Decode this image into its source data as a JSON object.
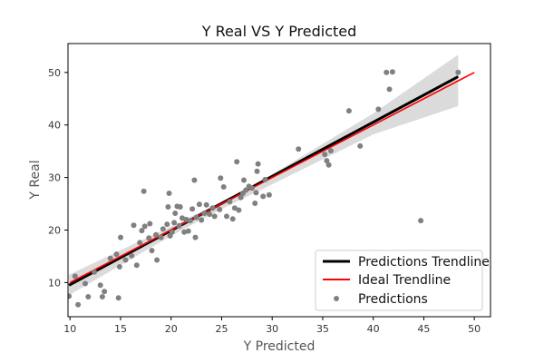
{
  "chart_data": {
    "type": "scatter",
    "title": "Y Real VS Y Predicted",
    "xlabel": "Y Predicted",
    "ylabel": "Y Real",
    "xlim": [
      9.8,
      51.6
    ],
    "ylim": [
      3.5,
      55.5
    ],
    "xticks": [
      10,
      15,
      20,
      25,
      30,
      35,
      40,
      45,
      50
    ],
    "yticks": [
      10,
      20,
      30,
      40,
      50
    ],
    "legend_position": "lower-right",
    "colors": {
      "points": "#808080",
      "trendline": "#000000",
      "ideal": "#ff0000",
      "confidence_band": "#d9d9d9"
    },
    "series": [
      {
        "name": "Predictions",
        "kind": "points",
        "points": [
          [
            9.9,
            7.4
          ],
          [
            10.5,
            11.2
          ],
          [
            10.8,
            5.8
          ],
          [
            11.5,
            9.8
          ],
          [
            11.8,
            7.3
          ],
          [
            12.4,
            12.0
          ],
          [
            13.0,
            9.5
          ],
          [
            13.2,
            7.3
          ],
          [
            13.4,
            8.3
          ],
          [
            14.0,
            14.6
          ],
          [
            14.6,
            15.4
          ],
          [
            14.8,
            7.1
          ],
          [
            14.9,
            13.0
          ],
          [
            15.0,
            18.6
          ],
          [
            15.5,
            14.3
          ],
          [
            16.1,
            15.1
          ],
          [
            16.3,
            20.9
          ],
          [
            16.6,
            13.3
          ],
          [
            16.9,
            17.6
          ],
          [
            17.1,
            19.9
          ],
          [
            17.3,
            27.4
          ],
          [
            17.4,
            20.7
          ],
          [
            17.8,
            18.5
          ],
          [
            17.9,
            21.2
          ],
          [
            18.1,
            16.1
          ],
          [
            18.5,
            19.1
          ],
          [
            18.6,
            14.3
          ],
          [
            19.0,
            18.6
          ],
          [
            19.2,
            20.2
          ],
          [
            19.6,
            21.1
          ],
          [
            19.7,
            24.4
          ],
          [
            19.8,
            27.0
          ],
          [
            19.9,
            18.9
          ],
          [
            20.1,
            19.6
          ],
          [
            20.3,
            21.4
          ],
          [
            20.4,
            23.2
          ],
          [
            20.6,
            24.5
          ],
          [
            20.8,
            20.8
          ],
          [
            20.9,
            24.4
          ],
          [
            21.1,
            22.3
          ],
          [
            21.3,
            19.6
          ],
          [
            21.5,
            22.0
          ],
          [
            21.7,
            19.8
          ],
          [
            21.9,
            21.8
          ],
          [
            22.1,
            24.0
          ],
          [
            22.3,
            29.5
          ],
          [
            22.4,
            18.6
          ],
          [
            22.5,
            22.4
          ],
          [
            22.8,
            24.9
          ],
          [
            23.0,
            21.9
          ],
          [
            23.3,
            23.2
          ],
          [
            23.5,
            24.8
          ],
          [
            23.8,
            23.0
          ],
          [
            24.1,
            24.2
          ],
          [
            24.3,
            22.6
          ],
          [
            24.8,
            23.9
          ],
          [
            24.9,
            29.9
          ],
          [
            25.2,
            28.2
          ],
          [
            25.5,
            22.6
          ],
          [
            25.8,
            25.4
          ],
          [
            26.1,
            22.1
          ],
          [
            26.3,
            24.2
          ],
          [
            26.5,
            33.0
          ],
          [
            26.7,
            23.8
          ],
          [
            26.9,
            26.2
          ],
          [
            27.1,
            27.0
          ],
          [
            27.2,
            29.5
          ],
          [
            27.4,
            27.6
          ],
          [
            27.7,
            28.3
          ],
          [
            28.0,
            28.0
          ],
          [
            28.3,
            25.1
          ],
          [
            28.4,
            27.1
          ],
          [
            28.5,
            31.2
          ],
          [
            28.6,
            32.6
          ],
          [
            29.1,
            26.4
          ],
          [
            29.3,
            29.6
          ],
          [
            29.7,
            26.7
          ],
          [
            32.6,
            35.4
          ],
          [
            35.2,
            34.4
          ],
          [
            35.4,
            33.2
          ],
          [
            35.6,
            32.4
          ],
          [
            35.8,
            35.1
          ],
          [
            37.6,
            42.7
          ],
          [
            38.7,
            36.0
          ],
          [
            40.5,
            43.0
          ],
          [
            41.3,
            50.0
          ],
          [
            41.6,
            46.8
          ],
          [
            41.9,
            50.1
          ],
          [
            44.7,
            21.8
          ],
          [
            48.4,
            50.0
          ]
        ]
      },
      {
        "name": "Predictions Trendline",
        "kind": "line",
        "points": [
          [
            9.9,
            9.5
          ],
          [
            48.4,
            49.2
          ]
        ]
      },
      {
        "name": "Ideal Trendline",
        "kind": "line",
        "points": [
          [
            10.0,
            10.0
          ],
          [
            50.0,
            50.0
          ]
        ]
      }
    ],
    "confidence_band": {
      "x": [
        9.9,
        20.0,
        25.0,
        30.0,
        40.0,
        48.4
      ],
      "upper": [
        11.5,
        20.7,
        25.4,
        30.6,
        42.2,
        53.4
      ],
      "lower": [
        7.6,
        18.9,
        24.0,
        28.7,
        38.2,
        43.6
      ]
    }
  }
}
